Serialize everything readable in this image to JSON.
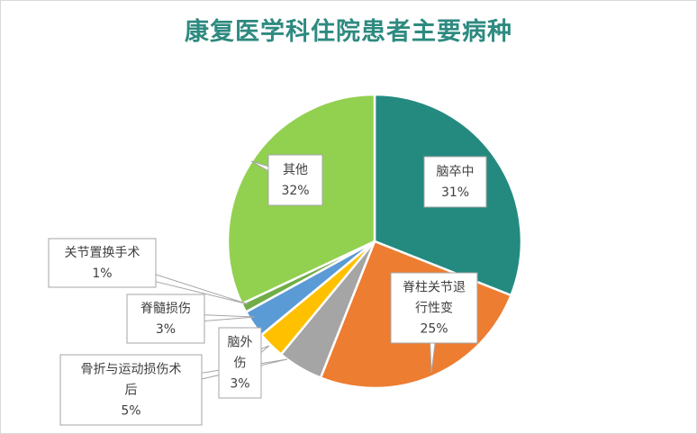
{
  "title": "康复医学科住院患者主要病种",
  "colors": {
    "title": "#2e8a80",
    "callout_border": "#a6a6a6",
    "leader": "#a6a6a6",
    "text": "#404040"
  },
  "chart_data": {
    "type": "pie",
    "title": "康复医学科住院患者主要病种",
    "legend": "none",
    "slices": [
      {
        "category": "脑卒中",
        "value": 31,
        "label": "31%",
        "color": "#248a80",
        "callout_lines": [
          "脑卒中",
          "31%"
        ]
      },
      {
        "category": "脊柱关节退行性变",
        "value": 25,
        "label": "25%",
        "color": "#ed7d31",
        "callout_lines": [
          "脊柱关节退",
          "行性变",
          "25%"
        ]
      },
      {
        "category": "骨折与运动损伤术后",
        "value": 5,
        "label": "5%",
        "color": "#a5a5a5",
        "callout_lines": [
          "骨折与运动损伤术",
          "后",
          "5%"
        ]
      },
      {
        "category": "脑外伤",
        "value": 3,
        "label": "3%",
        "color": "#ffc000",
        "callout_lines": [
          "脑外",
          "伤",
          "3%"
        ]
      },
      {
        "category": "脊髓损伤",
        "value": 3,
        "label": "3%",
        "color": "#5b9bd5",
        "callout_lines": [
          "脊髓损伤",
          "3%"
        ]
      },
      {
        "category": "关节置换手术",
        "value": 1,
        "label": "1%",
        "color": "#70ad47",
        "callout_lines": [
          "关节置换手术",
          "1%"
        ]
      },
      {
        "category": "其他",
        "value": 32,
        "label": "32%",
        "color": "#92d050",
        "callout_lines": [
          "其他",
          "32%"
        ]
      }
    ]
  }
}
